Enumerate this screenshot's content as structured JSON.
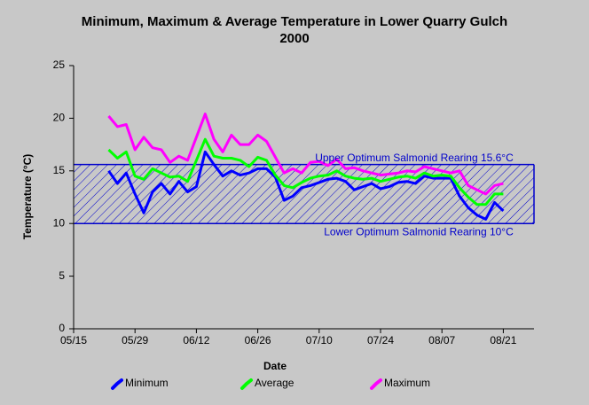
{
  "chart_data": {
    "type": "line",
    "title": "Minimum, Maximum & Average Temperature in Lower Quarry Gulch",
    "subtitle": "2000",
    "x_label": "Date",
    "y_label": "Temperature (°C)",
    "x": [
      "05/23",
      "05/25",
      "05/27",
      "05/29",
      "05/31",
      "06/02",
      "06/04",
      "06/06",
      "06/08",
      "06/10",
      "06/12",
      "06/14",
      "06/16",
      "06/18",
      "06/20",
      "06/22",
      "06/24",
      "06/26",
      "06/28",
      "06/30",
      "07/02",
      "07/04",
      "07/06",
      "07/08",
      "07/10",
      "07/12",
      "07/14",
      "07/16",
      "07/18",
      "07/20",
      "07/22",
      "07/24",
      "07/26",
      "07/28",
      "07/30",
      "08/01",
      "08/03",
      "08/05",
      "08/07",
      "08/09",
      "08/11",
      "08/13",
      "08/15",
      "08/17",
      "08/19",
      "08/21"
    ],
    "xlim": [
      "05/15",
      "08/28"
    ],
    "xticks": [
      "05/15",
      "05/29",
      "06/12",
      "06/26",
      "07/10",
      "07/24",
      "08/07",
      "08/21"
    ],
    "ylim": [
      0,
      25
    ],
    "yticks": [
      0,
      5,
      10,
      15,
      20,
      25
    ],
    "series": [
      {
        "name": "Minimum",
        "color": "#0000ff",
        "values": [
          15.0,
          13.8,
          14.8,
          12.8,
          11.0,
          13.0,
          13.8,
          12.8,
          14.0,
          13.0,
          13.5,
          16.8,
          15.6,
          14.5,
          15.0,
          14.6,
          14.8,
          15.2,
          15.2,
          14.4,
          12.2,
          12.6,
          13.4,
          13.6,
          13.9,
          14.2,
          14.3,
          14.0,
          13.2,
          13.5,
          13.8,
          13.3,
          13.5,
          13.9,
          14.0,
          13.8,
          14.5,
          14.3,
          14.3,
          14.3,
          12.6,
          11.5,
          10.8,
          10.4,
          12.0,
          11.2
        ]
      },
      {
        "name": "Average",
        "color": "#00ff00",
        "values": [
          17.0,
          16.2,
          16.8,
          14.5,
          14.2,
          15.2,
          14.8,
          14.4,
          14.5,
          14.0,
          16.0,
          18.0,
          16.4,
          16.2,
          16.2,
          16.0,
          15.4,
          16.3,
          16.0,
          14.6,
          13.6,
          13.4,
          13.9,
          14.3,
          14.5,
          14.6,
          15.0,
          14.5,
          14.3,
          14.2,
          14.3,
          14.0,
          14.2,
          14.4,
          14.5,
          14.3,
          14.8,
          14.5,
          14.6,
          14.5,
          13.4,
          12.5,
          11.8,
          11.8,
          12.8,
          12.8
        ]
      },
      {
        "name": "Maximum",
        "color": "#ff00ff",
        "values": [
          20.2,
          19.2,
          19.4,
          17.0,
          18.2,
          17.2,
          17.0,
          15.8,
          16.4,
          16.0,
          18.2,
          20.4,
          18.0,
          16.8,
          18.4,
          17.5,
          17.5,
          18.4,
          17.8,
          16.3,
          14.8,
          15.2,
          14.8,
          15.8,
          15.9,
          15.5,
          16.1,
          15.2,
          15.3,
          15.0,
          14.8,
          14.6,
          14.7,
          14.8,
          15.0,
          14.9,
          15.4,
          15.2,
          15.0,
          14.8,
          15.0,
          13.6,
          13.2,
          12.8,
          13.6,
          13.8
        ]
      }
    ],
    "reference_lines": [
      {
        "label": "Upper Optimum Salmonid Rearing 15.6°C",
        "value": 15.6
      },
      {
        "label": "Lower Optimum Salmonid Rearing 10°C",
        "value": 10
      }
    ],
    "band_color": "#0000cc",
    "legend": "bottom"
  }
}
